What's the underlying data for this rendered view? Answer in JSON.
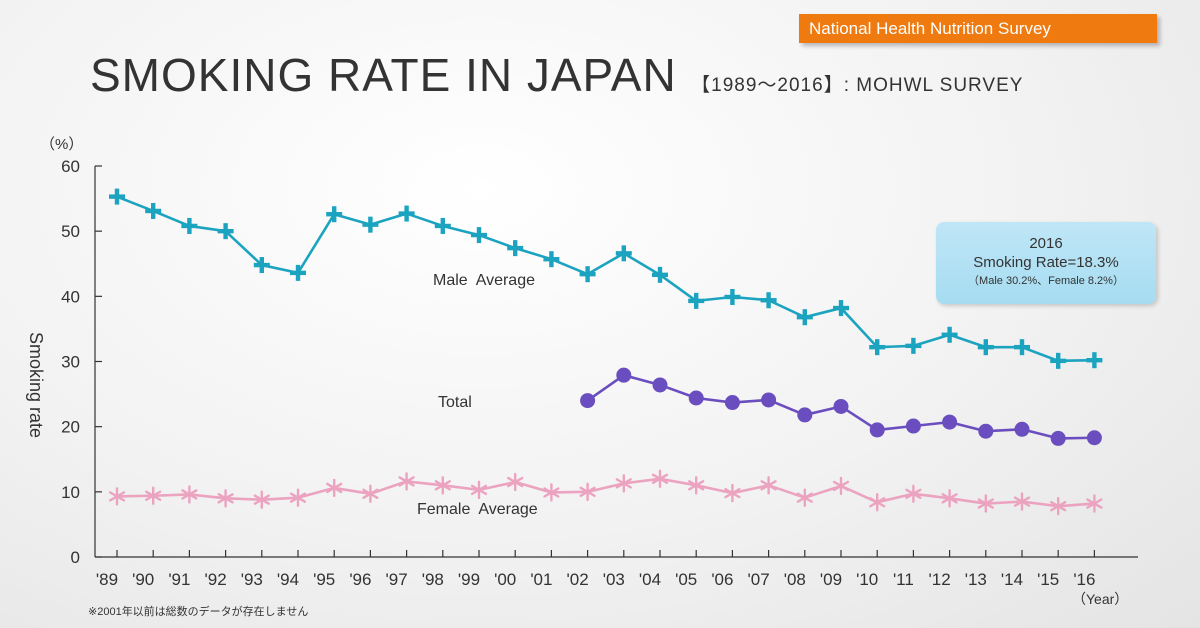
{
  "badge": "National Health Nutrition Survey",
  "header": {
    "title": "SMOKING RATE IN JAPAN",
    "subtitle": "【1989～2016】: MOHWL  SURVEY"
  },
  "callout": {
    "line1": "2016",
    "line2": "Smoking Rate=18.3%",
    "line3": "（Male 30.2%、Female 8.2%）"
  },
  "footnote": "※2001年以前は総数のデータが存在しません",
  "colors": {
    "male": "#1ba3bf",
    "total": "#6a4ebf",
    "female": "#eba3c0",
    "badge": "#ef7a10",
    "callout": "#b3e1f4"
  },
  "chart_data": {
    "type": "line",
    "ylabel": "Smoking rate",
    "yunit": "（%）",
    "xunit": "（Year）",
    "ylim": [
      0,
      60
    ],
    "yticks": [
      0,
      10,
      20,
      30,
      40,
      50,
      60
    ],
    "categories": [
      "'89",
      "'90",
      "'91",
      "'92",
      "'93",
      "'94",
      "'95",
      "'96",
      "'97",
      "'98",
      "'99",
      "'00",
      "'01",
      "'02",
      "'03",
      "'04",
      "'05",
      "'06",
      "'07",
      "'08",
      "'09",
      "'10",
      "'11",
      "'12",
      "'13",
      "'14",
      "'15",
      "'16"
    ],
    "grid": false,
    "series": [
      {
        "name": "Male  Average",
        "marker": "cross",
        "values": [
          55.3,
          53.1,
          50.8,
          50.0,
          44.8,
          43.6,
          52.6,
          51.0,
          52.7,
          50.8,
          49.4,
          47.4,
          45.7,
          43.4,
          46.6,
          43.3,
          39.3,
          39.9,
          39.4,
          36.8,
          38.2,
          32.2,
          32.4,
          34.1,
          32.2,
          32.2,
          30.1,
          30.2
        ]
      },
      {
        "name": "Total",
        "marker": "circle",
        "values": [
          null,
          null,
          null,
          null,
          null,
          null,
          null,
          null,
          null,
          null,
          null,
          null,
          null,
          24.0,
          27.9,
          26.4,
          24.4,
          23.7,
          24.1,
          21.8,
          23.1,
          19.5,
          20.1,
          20.7,
          19.3,
          19.6,
          18.2,
          18.3
        ]
      },
      {
        "name": "Female  Average",
        "marker": "asterisk",
        "values": [
          9.3,
          9.4,
          9.6,
          9.0,
          8.8,
          9.1,
          10.6,
          9.7,
          11.6,
          11.0,
          10.3,
          11.5,
          9.9,
          10.0,
          11.3,
          12.0,
          11.0,
          9.8,
          11.0,
          9.1,
          10.9,
          8.4,
          9.7,
          9.0,
          8.2,
          8.5,
          7.8,
          8.2
        ]
      }
    ]
  }
}
